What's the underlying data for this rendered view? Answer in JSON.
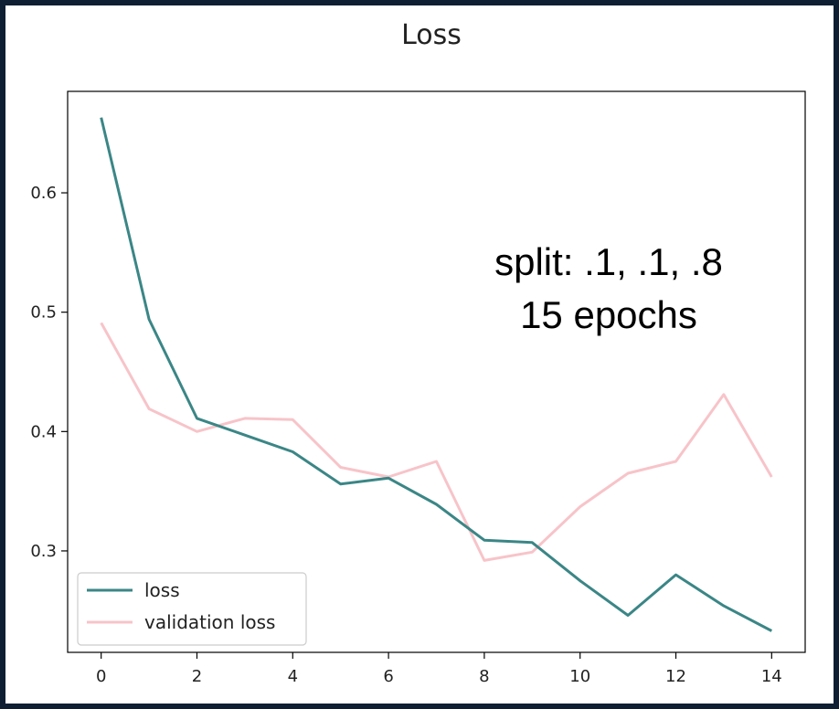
{
  "chart_data": {
    "type": "line",
    "title": "Loss",
    "xlabel": "",
    "ylabel": "",
    "xlim": [
      -0.7,
      14.7
    ],
    "ylim": [
      0.215,
      0.685
    ],
    "x": [
      0,
      1,
      2,
      3,
      4,
      5,
      6,
      7,
      8,
      9,
      10,
      11,
      12,
      13,
      14
    ],
    "x_ticks": [
      0,
      2,
      4,
      6,
      8,
      10,
      12,
      14
    ],
    "y_ticks": [
      0.3,
      0.4,
      0.5,
      0.6
    ],
    "y_tick_labels": [
      "0.3",
      "0.4",
      "0.5",
      "0.6"
    ],
    "grid": false,
    "legend_position": "lower-left",
    "series": [
      {
        "name": "loss",
        "color": "#3b8686",
        "values": [
          0.663,
          0.494,
          0.411,
          0.397,
          0.383,
          0.356,
          0.361,
          0.339,
          0.309,
          0.307,
          0.275,
          0.246,
          0.28,
          0.254,
          0.233
        ]
      },
      {
        "name": "validation loss",
        "color": "#f7c4c9",
        "values": [
          0.491,
          0.419,
          0.4,
          0.411,
          0.41,
          0.37,
          0.362,
          0.375,
          0.292,
          0.299,
          0.337,
          0.365,
          0.375,
          0.431,
          0.362
        ]
      }
    ],
    "annotations": [
      "split: .1, .1, .8",
      "15 epochs"
    ]
  }
}
